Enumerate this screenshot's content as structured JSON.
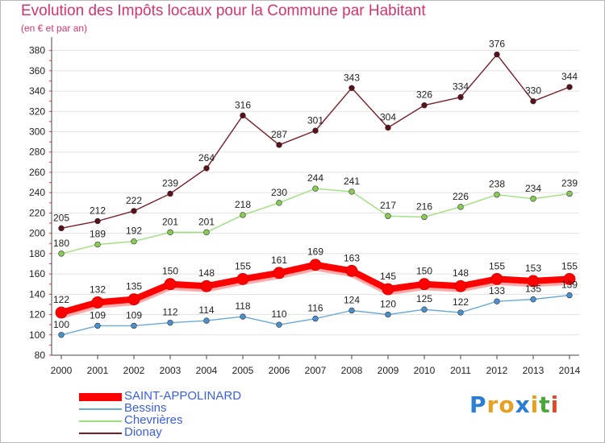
{
  "header": {
    "title": "Evolution des Impôts locaux pour la Commune par Habitant",
    "subtitle": "(en € et par an)"
  },
  "logo": {
    "text": "Proxiti",
    "colors": [
      "#2a7fd4",
      "#e8a020",
      "#e8a020",
      "#2a7fd4",
      "#e8a020",
      "#4aa83a",
      "#e04a2a"
    ]
  },
  "chart_data": {
    "type": "line",
    "x": [
      2000,
      2001,
      2002,
      2003,
      2004,
      2005,
      2006,
      2007,
      2008,
      2009,
      2010,
      2011,
      2012,
      2013,
      2014
    ],
    "ylim": [
      80,
      390
    ],
    "yticks": [
      80,
      100,
      120,
      140,
      160,
      180,
      200,
      220,
      240,
      260,
      280,
      300,
      320,
      340,
      360,
      380
    ],
    "grid": "horizontal",
    "legend_position": "bottom-left",
    "series": [
      {
        "name": "Dionay",
        "color": "#7a1e28",
        "point_color": "#5a1018",
        "values": [
          205,
          212,
          222,
          239,
          264,
          316,
          287,
          301,
          343,
          304,
          326,
          334,
          376,
          330,
          344
        ]
      },
      {
        "name": "Chevrières",
        "color": "#9ee07a",
        "point_color": "#88cc55",
        "values": [
          180,
          189,
          192,
          201,
          201,
          218,
          230,
          244,
          241,
          217,
          216,
          226,
          238,
          234,
          239
        ]
      },
      {
        "name": "Bessins",
        "color": "#6aa8d8",
        "point_color": "#4a90cc",
        "values": [
          100,
          109,
          109,
          112,
          114,
          118,
          110,
          116,
          124,
          120,
          125,
          122,
          133,
          135,
          139
        ]
      },
      {
        "name": "SAINT-APPOLINARD",
        "color": "#ff0000",
        "point_color": "#ff0000",
        "values": [
          122,
          132,
          135,
          150,
          148,
          155,
          161,
          169,
          163,
          145,
          150,
          148,
          155,
          153,
          155
        ]
      }
    ],
    "legend_order": [
      "SAINT-APPOLINARD",
      "Bessins",
      "Chevrières",
      "Dionay"
    ]
  }
}
